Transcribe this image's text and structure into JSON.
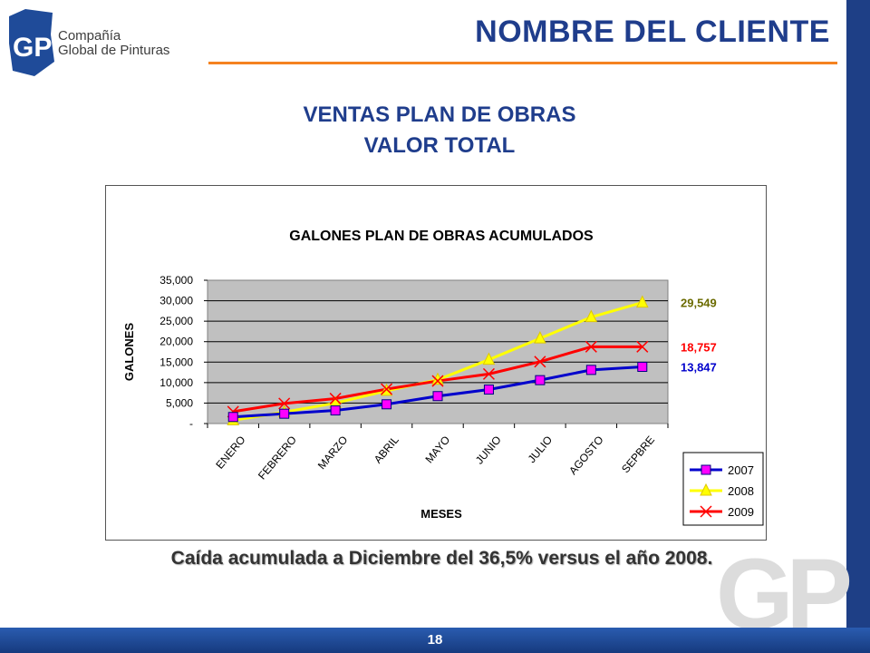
{
  "header": {
    "title": "NOMBRE DEL CLIENTE"
  },
  "logo": {
    "monogram": "GP",
    "line1": "Compañía",
    "line2": "Global de Pinturas"
  },
  "slide": {
    "title_line1": "VENTAS PLAN DE OBRAS",
    "title_line2": "VALOR TOTAL"
  },
  "caption": "Caída acumulada a Diciembre del 36,5% versus el año 2008.",
  "page_number": "18",
  "watermark": "GP",
  "colors": {
    "brand_blue": "#1f3d8c",
    "accent_orange": "#f58220",
    "plot_bg": "#c0c0c0"
  },
  "chart_data": {
    "type": "line",
    "title": "GALONES PLAN DE OBRAS ACUMULADOS",
    "xlabel": "MESES",
    "ylabel": "GALONES",
    "ylim": [
      0,
      35000
    ],
    "yticks": [
      0,
      5000,
      10000,
      15000,
      20000,
      25000,
      30000,
      35000
    ],
    "ytick_labels": [
      "-",
      "5,000",
      "10,000",
      "15,000",
      "20,000",
      "25,000",
      "30,000",
      "35,000"
    ],
    "categories": [
      "ENERO",
      "FEBRERO",
      "MARZO",
      "ABRIL",
      "MAYO",
      "JUNIO",
      "JULIO",
      "AGOSTO",
      "SEPBRE"
    ],
    "grid": true,
    "legend_position": "bottom-right",
    "series": [
      {
        "name": "2007",
        "color": "#0000cc",
        "marker": "square",
        "marker_color": "#ff00ff",
        "values": [
          1600,
          2400,
          3200,
          4700,
          6700,
          8300,
          10600,
          13100,
          13847
        ]
      },
      {
        "name": "2008",
        "color": "#ffff00",
        "marker": "triangle",
        "marker_color": "#ffff00",
        "values": [
          800,
          2800,
          5000,
          8000,
          10700,
          15600,
          20800,
          26000,
          29549
        ]
      },
      {
        "name": "2009",
        "color": "#ff0000",
        "marker": "x",
        "marker_color": "#ff0000",
        "values": [
          2900,
          4900,
          6100,
          8400,
          10400,
          12100,
          15100,
          18757,
          18757
        ]
      }
    ],
    "end_labels": [
      {
        "text": "29,549",
        "color": "#6b6b00",
        "value": 29549
      },
      {
        "text": "18,757",
        "color": "#ff0000",
        "value": 18757
      },
      {
        "text": "13,847",
        "color": "#0000cc",
        "value": 13847
      }
    ]
  }
}
